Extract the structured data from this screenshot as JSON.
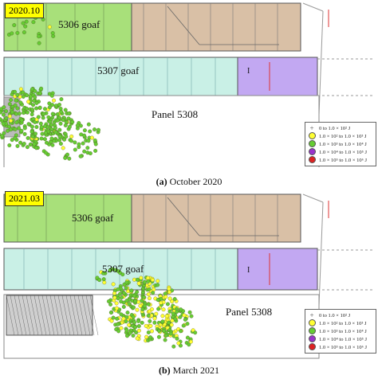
{
  "panels": [
    {
      "date": "2020.10",
      "caption_letter": "(a)",
      "caption_text": "October 2020",
      "labels": {
        "goaf_5306": "5306 goaf",
        "goaf_5307": "5307 goaf",
        "panel_5308": "Panel 5308",
        "marker": "I"
      }
    },
    {
      "date": "2021.03",
      "caption_letter": "(b)",
      "caption_text": "March 2021",
      "labels": {
        "goaf_5306": "5306 goaf",
        "goaf_5307": "5307 goaf",
        "panel_5308": "Panel 5308",
        "marker": "I"
      }
    }
  ],
  "legend": {
    "items": [
      {
        "label": "0 to 1.0 × 10² J",
        "symbol": "cross-icon",
        "color": "#555555"
      },
      {
        "label": "1.0 × 10² to 1.0 × 10³ J",
        "symbol": "circle-icon",
        "color": "#ffff33"
      },
      {
        "label": "1.0 × 10³ to 1.0 × 10⁴ J",
        "symbol": "circle-icon",
        "color": "#66cc33"
      },
      {
        "label": "1.0 × 10⁴ to 1.0 × 10⁵ J",
        "symbol": "circle-icon",
        "color": "#9933cc"
      },
      {
        "label": "1.0 × 10⁵ to 1.0 × 10⁶ J",
        "symbol": "circle-icon",
        "color": "#dd2222"
      }
    ]
  },
  "colors": {
    "goaf_green": "#a8e07a",
    "goaf_brown": "#d9c0a6",
    "goaf_teal": "#c9f0e6",
    "goaf_purple": "#c2a8f2",
    "event_green": "#66cc33",
    "event_yellow": "#ffff33"
  }
}
